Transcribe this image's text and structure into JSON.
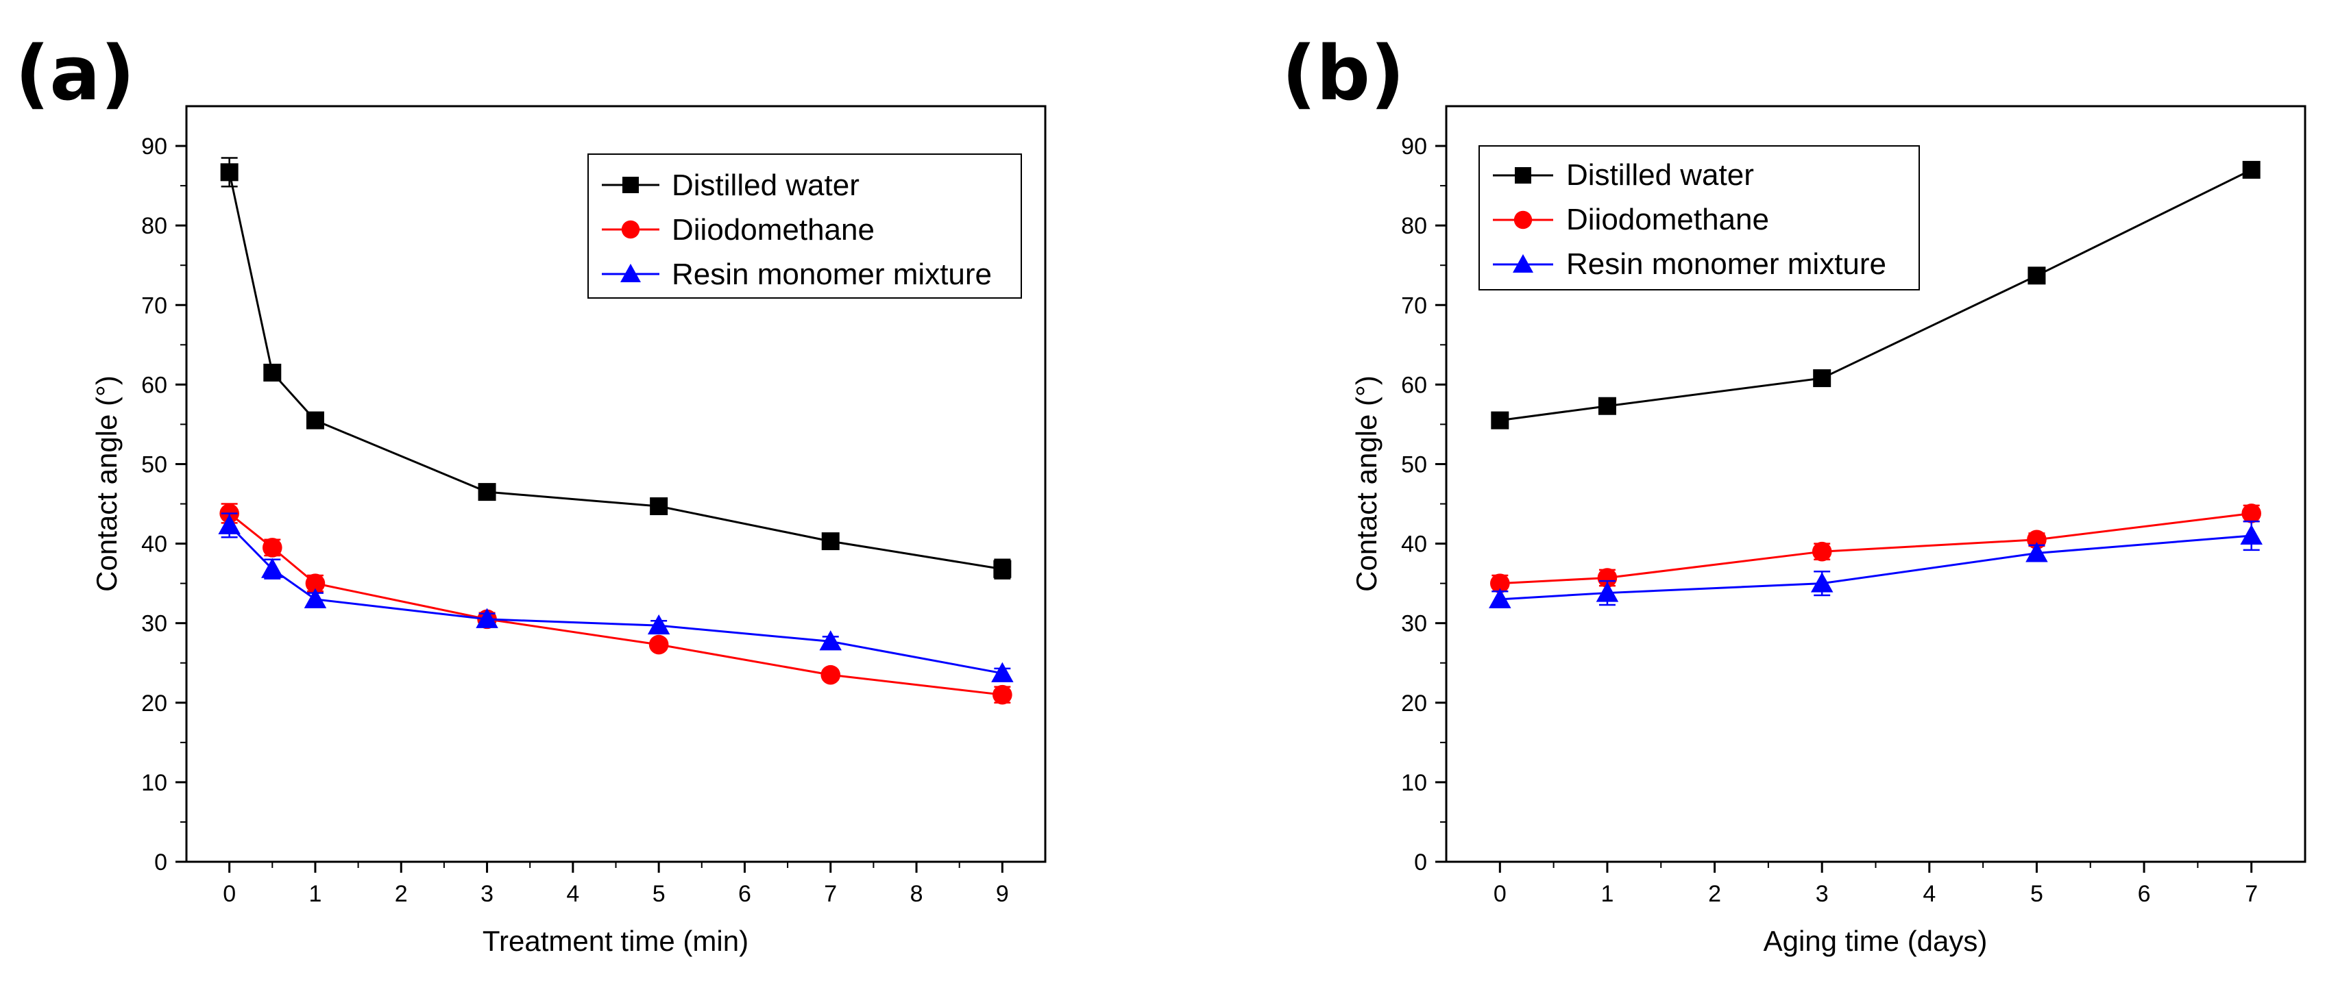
{
  "chart_data": [
    {
      "type": "line",
      "panel_label": "(a)",
      "xlabel": "Treatment time (min)",
      "ylabel": "Contact angle (°)",
      "xlim": [
        -0.5,
        9.5
      ],
      "ylim": [
        0,
        95
      ],
      "x_ticks": [
        0,
        1,
        2,
        3,
        4,
        5,
        6,
        7,
        8,
        9
      ],
      "y_ticks": [
        0,
        10,
        20,
        30,
        40,
        50,
        60,
        70,
        80,
        90
      ],
      "grid": false,
      "legend_position": "top-right",
      "series": [
        {
          "name": "Distilled water",
          "color": "#000000",
          "marker": "square",
          "x": [
            0,
            0.5,
            1,
            3,
            5,
            7,
            9
          ],
          "y": [
            86.7,
            61.5,
            55.5,
            46.5,
            44.7,
            40.3,
            36.8
          ],
          "err": [
            1.8,
            0.9,
            0.7,
            0.8,
            0.8,
            0.8,
            1.2
          ]
        },
        {
          "name": "Diiodomethane",
          "color": "#ff0000",
          "marker": "circle",
          "x": [
            0,
            0.5,
            1,
            3,
            5,
            7,
            9
          ],
          "y": [
            43.8,
            39.5,
            35.0,
            30.5,
            27.3,
            23.5,
            21.0
          ],
          "err": [
            1.2,
            1.0,
            1.0,
            0.8,
            0.6,
            0.6,
            1.0
          ]
        },
        {
          "name": "Resin monomer mixture",
          "color": "#0000ff",
          "marker": "triangle",
          "x": [
            0,
            0.5,
            1,
            3,
            5,
            7,
            9
          ],
          "y": [
            42.3,
            36.8,
            33.0,
            30.5,
            29.7,
            27.7,
            23.7
          ],
          "err": [
            1.5,
            1.2,
            0.8,
            0.7,
            0.6,
            0.6,
            0.6
          ]
        }
      ]
    },
    {
      "type": "line",
      "panel_label": "(b)",
      "xlabel": "Aging time (days)",
      "ylabel": "Contact angle (°)",
      "xlim": [
        -0.5,
        7.5
      ],
      "ylim": [
        0,
        95
      ],
      "x_ticks": [
        0,
        1,
        2,
        3,
        4,
        5,
        6,
        7
      ],
      "y_ticks": [
        0,
        10,
        20,
        30,
        40,
        50,
        60,
        70,
        80,
        90
      ],
      "grid": false,
      "legend_position": "top-left",
      "series": [
        {
          "name": "Distilled water",
          "color": "#000000",
          "marker": "square",
          "x": [
            0,
            1,
            3,
            5,
            7
          ],
          "y": [
            55.5,
            57.3,
            60.8,
            73.7,
            87.0
          ],
          "err": [
            0.8,
            0.8,
            0.7,
            0.8,
            0.8
          ]
        },
        {
          "name": "Diiodomethane",
          "color": "#ff0000",
          "marker": "circle",
          "x": [
            0,
            1,
            3,
            5,
            7
          ],
          "y": [
            35.0,
            35.7,
            39.0,
            40.5,
            43.8
          ],
          "err": [
            1.0,
            1.0,
            1.0,
            0.8,
            1.0
          ]
        },
        {
          "name": "Resin monomer mixture",
          "color": "#0000ff",
          "marker": "triangle",
          "x": [
            0,
            1,
            3,
            5,
            7
          ],
          "y": [
            33.0,
            33.8,
            35.0,
            38.8,
            41.0
          ],
          "err": [
            1.0,
            1.5,
            1.5,
            1.0,
            1.8
          ]
        }
      ]
    }
  ]
}
